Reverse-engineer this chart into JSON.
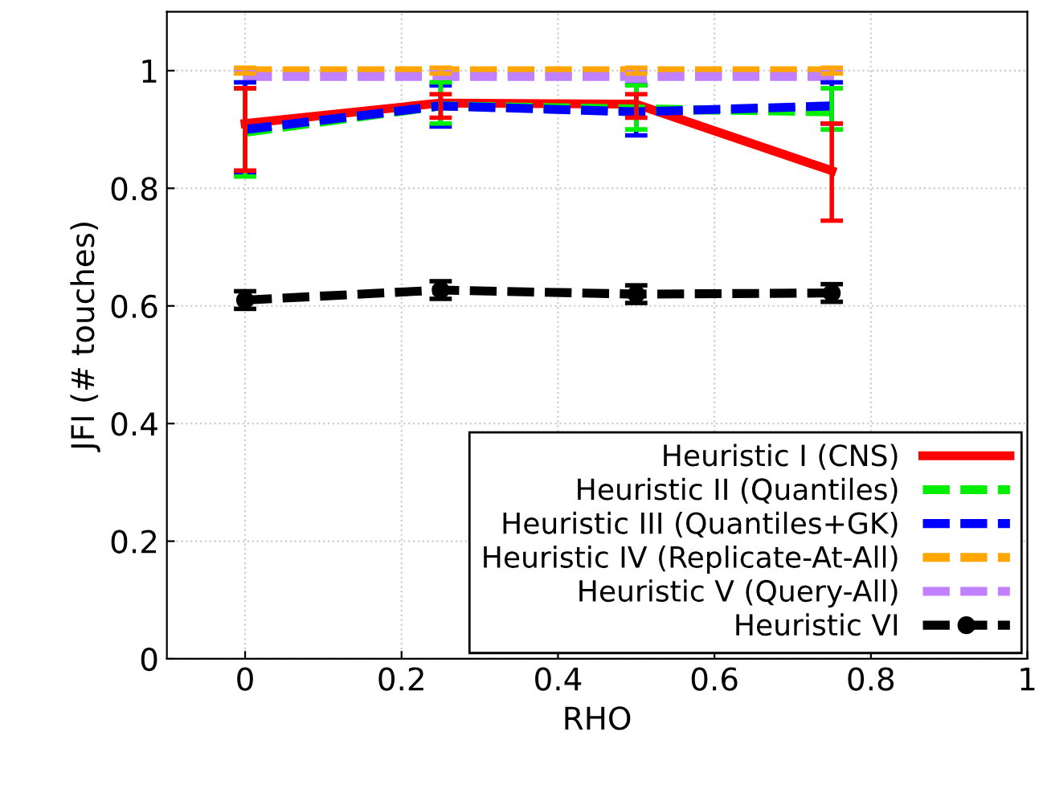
{
  "chart_data": {
    "type": "line",
    "xlabel": "RHO",
    "ylabel": "JFI (# touches)",
    "x": [
      0,
      0.25,
      0.5,
      0.75
    ],
    "xlim": [
      -0.1,
      1
    ],
    "xticks": [
      0,
      0.2,
      0.4,
      0.6,
      0.8,
      1
    ],
    "ylim": [
      0,
      1.1
    ],
    "yticks": [
      0,
      0.2,
      0.4,
      0.6,
      0.8,
      1
    ],
    "grid": true,
    "legend": "bottom right",
    "marker": "none",
    "series": [
      {
        "name": "Heuristic I (CNS)",
        "color": "#ff0000",
        "line_style": "solid",
        "values": [
          0.91,
          0.945,
          0.943,
          0.83
        ],
        "errors": [
          [
            0.83,
            0.97
          ],
          [
            0.92,
            0.96
          ],
          [
            0.92,
            0.96
          ],
          [
            0.745,
            0.91
          ]
        ]
      },
      {
        "name": "Heuristic II (Quantiles)",
        "color": "#00ee00",
        "line_style": "dashed",
        "values": [
          0.895,
          0.94,
          0.935,
          0.93
        ],
        "errors": [
          [
            0.82,
            0.97
          ],
          [
            0.91,
            0.98
          ],
          [
            0.9,
            0.975
          ],
          [
            0.9,
            0.97
          ]
        ]
      },
      {
        "name": "Heuristic III (Quantiles+GK)",
        "color": "#0000ff",
        "line_style": "dashed",
        "values": [
          0.9,
          0.94,
          0.93,
          0.94
        ],
        "errors": [
          [
            0.825,
            0.98
          ],
          [
            0.905,
            0.975
          ],
          [
            0.89,
            0.975
          ],
          [
            0.91,
            0.98
          ]
        ]
      },
      {
        "name": "Heuristic IV (Replicate-At-All)",
        "color": "#ffa500",
        "line_style": "dashed",
        "values": [
          1.0,
          1.0,
          1.0,
          1.0
        ],
        "errors": [
          0.005,
          0.005,
          0.005,
          0.005
        ]
      },
      {
        "name": "Heuristic V (Query-All)",
        "color": "#c080ff",
        "line_style": "dashed",
        "values": [
          0.99,
          0.99,
          0.99,
          0.99
        ],
        "errors": [
          0.01,
          0.01,
          0.01,
          0.01
        ]
      },
      {
        "name": "Heuristic VI",
        "color": "#000000",
        "line_style": "dashed",
        "marker": "circle",
        "values": [
          0.61,
          0.627,
          0.62,
          0.622
        ],
        "errors": [
          0.015,
          0.015,
          0.015,
          0.015
        ]
      }
    ]
  }
}
